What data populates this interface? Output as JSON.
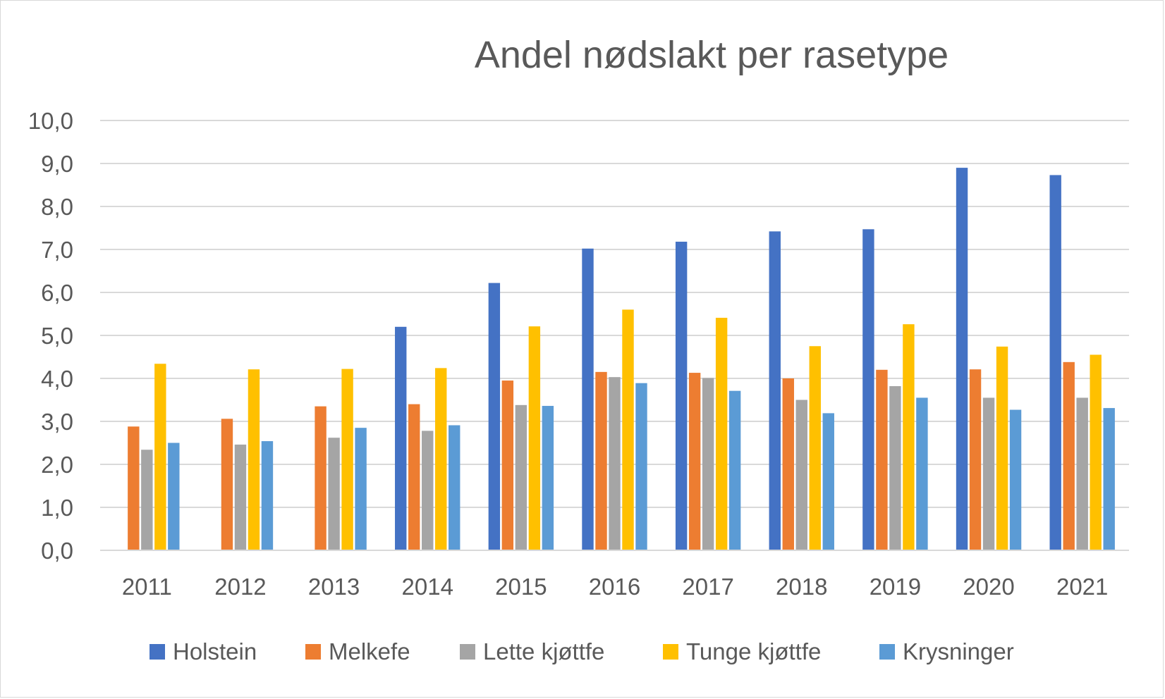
{
  "chart_data": {
    "type": "bar",
    "title": "Andel nødslakt per rasetype",
    "xlabel": "",
    "ylabel": "",
    "ylim": [
      0,
      10
    ],
    "ytick_step": 1,
    "ytick_labels": [
      "0,0",
      "1,0",
      "2,0",
      "3,0",
      "4,0",
      "5,0",
      "6,0",
      "7,0",
      "8,0",
      "9,0",
      "10,0"
    ],
    "grid": true,
    "legend_position": "bottom",
    "categories": [
      "2011",
      "2012",
      "2013",
      "2014",
      "2015",
      "2016",
      "2017",
      "2018",
      "2019",
      "2020",
      "2021"
    ],
    "series": [
      {
        "name": "Holstein",
        "color": "#4472c4",
        "values": [
          null,
          null,
          null,
          5.2,
          6.22,
          7.02,
          7.18,
          7.42,
          7.47,
          8.9,
          8.73
        ]
      },
      {
        "name": "Melkefe",
        "color": "#ed7d31",
        "values": [
          2.88,
          3.06,
          3.35,
          3.4,
          3.95,
          4.15,
          4.13,
          4.0,
          4.2,
          4.21,
          4.38
        ]
      },
      {
        "name": "Lette kjøttfe",
        "color": "#a5a5a5",
        "values": [
          2.34,
          2.46,
          2.62,
          2.78,
          3.38,
          4.03,
          4.01,
          3.5,
          3.82,
          3.55,
          3.55
        ]
      },
      {
        "name": "Tunge kjøttfe",
        "color": "#ffc000",
        "values": [
          4.34,
          4.21,
          4.22,
          4.24,
          5.21,
          5.6,
          5.41,
          4.75,
          5.26,
          4.74,
          4.55
        ]
      },
      {
        "name": "Krysninger",
        "color": "#5b9bd5",
        "values": [
          2.5,
          2.54,
          2.85,
          2.91,
          3.36,
          3.89,
          3.71,
          3.19,
          3.55,
          3.27,
          3.31
        ]
      }
    ]
  }
}
